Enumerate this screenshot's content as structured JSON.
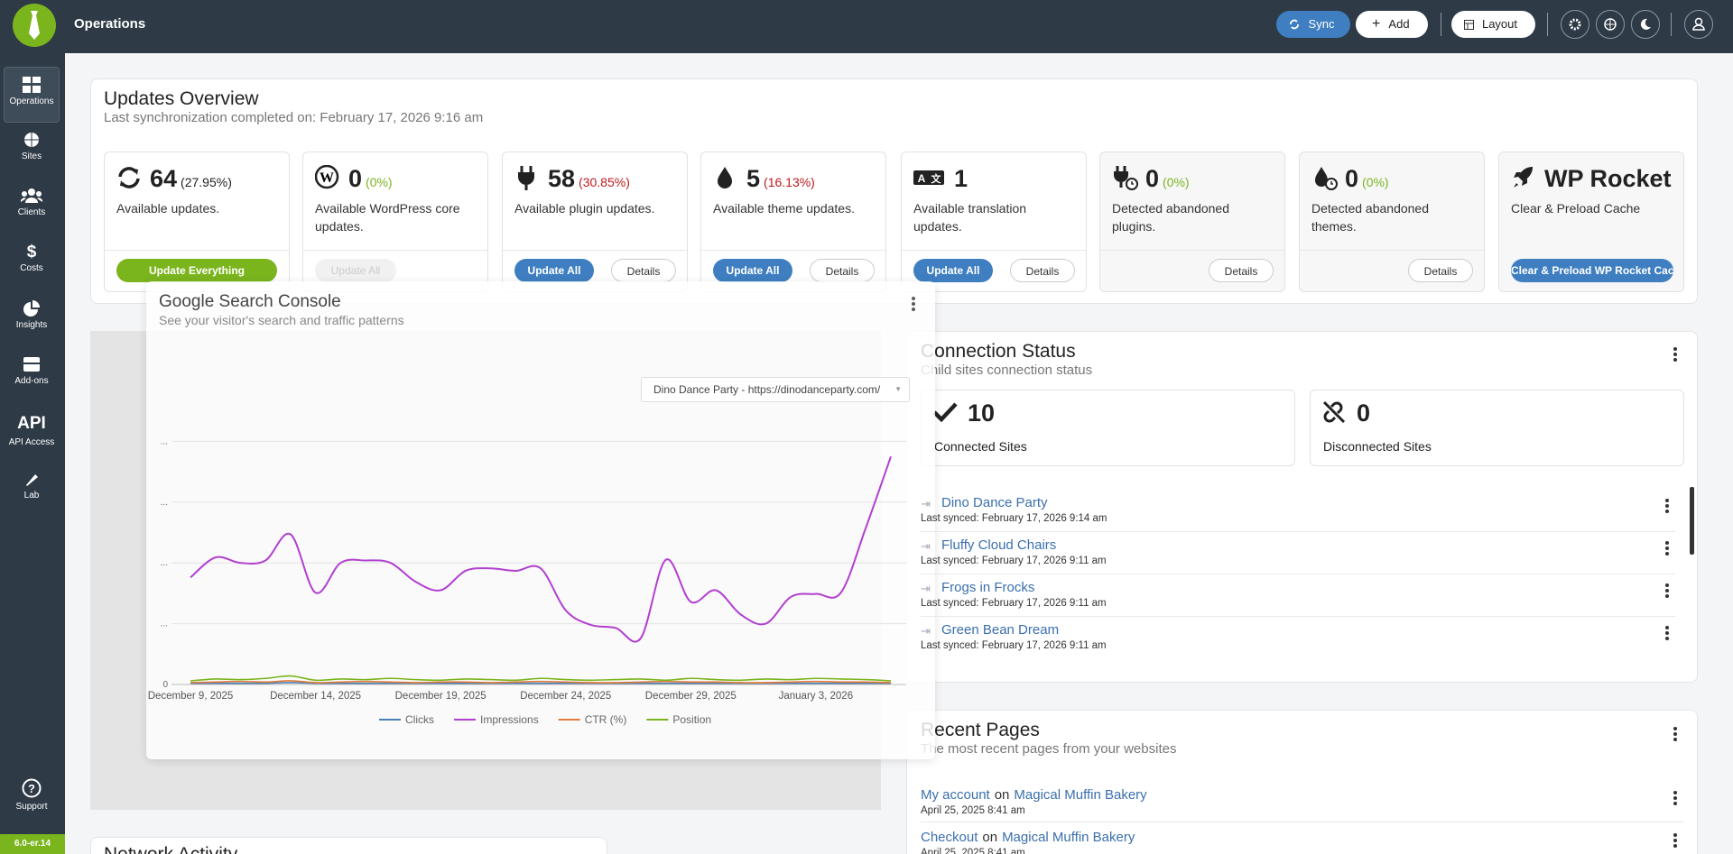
{
  "topbar": {
    "title": "Operations",
    "buttons": [
      "Sync",
      "Add",
      "Layout"
    ]
  },
  "sidebar": {
    "items": [
      "Operations",
      "Sites",
      "Clients",
      "Costs",
      "Insights",
      "Add-ons",
      "API Access",
      "Lab"
    ],
    "api_icon": "API",
    "support": "Support",
    "version": "6.0-er.14"
  },
  "updates": {
    "title": "Updates Overview",
    "subtitle": "Last synchronization completed on: February 17, 2026 9:16 am",
    "cards": [
      {
        "value": 64,
        "percent": "(27.95%)",
        "label": "Available updates.",
        "buttons": [
          "Update Everything"
        ]
      },
      {
        "value": 0,
        "percent": "(0%)",
        "label": "Available WordPress core updates.",
        "buttons": [
          "Update All"
        ]
      },
      {
        "value": 58,
        "percent": "(30.85%)",
        "label": "Available plugin updates.",
        "buttons": [
          "Update All",
          "Details"
        ]
      },
      {
        "value": 5,
        "percent": "(16.13%)",
        "label": "Available theme updates.",
        "buttons": [
          "Update All",
          "Details"
        ]
      },
      {
        "value": 1,
        "label": "Available translation updates.",
        "buttons": [
          "Update All",
          "Details"
        ]
      },
      {
        "value": 0,
        "percent": "(0%)",
        "label": "Detected abandoned plugins.",
        "buttons": [
          "Details"
        ]
      },
      {
        "value": 0,
        "percent": "(0%)",
        "label": "Detected abandoned themes.",
        "buttons": [
          "Details"
        ]
      },
      {
        "value": "WP Rocket",
        "label": "Clear & Preload Cache",
        "buttons": [
          "Clear & Preload WP Rocket Cache"
        ]
      }
    ]
  },
  "chart_data": {
    "type": "line",
    "title": "Google Search Console",
    "subtitle": "See your visitor's search and traffic patterns",
    "site_select": "Dino Dance Party - https://dinodanceparty.com/",
    "categories": [
      "December 9, 2025",
      null,
      null,
      null,
      null,
      "December 14, 2025",
      null,
      null,
      null,
      null,
      "December 19, 2025",
      null,
      null,
      null,
      null,
      "December 24, 2025",
      null,
      null,
      null,
      null,
      "December 29, 2025",
      null,
      null,
      null,
      null,
      "January 3, 2026",
      null,
      null,
      null
    ],
    "ylim": [
      0,
      4
    ],
    "yticks": [
      0,
      {
        "value": 1,
        "label": "..."
      },
      {
        "value": 2,
        "label": "..."
      },
      {
        "value": 3,
        "label": "..."
      },
      {
        "value": 4,
        "label": "..."
      }
    ],
    "grid": true,
    "series": [
      {
        "name": "Clicks",
        "color": "#4a7fb5",
        "values": [
          0.02,
          0.02,
          0.02,
          0.02,
          0.03,
          0.02,
          0.02,
          0.02,
          0.02,
          0.02,
          0.02,
          0.02,
          0.02,
          0.02,
          0.02,
          0.02,
          0.02,
          0.02,
          0.02,
          0.02,
          0.02,
          0.02,
          0.02,
          0.02,
          0.02,
          0.02,
          0.02,
          0.02,
          0.02
        ]
      },
      {
        "name": "Impressions",
        "color": "#b23fd0",
        "values": [
          1.76,
          2.09,
          2.0,
          2.04,
          2.47,
          1.51,
          2.0,
          2.04,
          2.0,
          1.69,
          1.55,
          1.87,
          1.91,
          1.87,
          1.91,
          1.22,
          0.98,
          0.93,
          0.76,
          2.05,
          1.36,
          1.55,
          1.15,
          1.0,
          1.44,
          1.49,
          1.51,
          2.58,
          3.75
        ]
      },
      {
        "name": "CTR (%)",
        "color": "#e07b39",
        "values": [
          0.03,
          0.04,
          0.05,
          0.04,
          0.06,
          0.03,
          0.04,
          0.05,
          0.04,
          0.03,
          0.04,
          0.04,
          0.03,
          0.04,
          0.05,
          0.04,
          0.03,
          0.03,
          0.04,
          0.05,
          0.04,
          0.04,
          0.03,
          0.03,
          0.04,
          0.05,
          0.04,
          0.04,
          0.03
        ]
      },
      {
        "name": "Position",
        "color": "#7ab51d",
        "values": [
          0.06,
          0.09,
          0.08,
          0.1,
          0.14,
          0.07,
          0.09,
          0.08,
          0.1,
          0.08,
          0.07,
          0.09,
          0.08,
          0.07,
          0.1,
          0.08,
          0.07,
          0.08,
          0.09,
          0.07,
          0.1,
          0.08,
          0.07,
          0.09,
          0.08,
          0.1,
          0.09,
          0.08,
          0.06
        ]
      }
    ]
  },
  "connection": {
    "title": "Connection Status",
    "subtitle": "Child sites connection status",
    "connected": {
      "value": 10,
      "label": "Connected Sites"
    },
    "disconnected": {
      "value": 0,
      "label": "Disconnected Sites"
    },
    "sites": [
      {
        "name": "Dino Dance Party",
        "synced": "Last synced: February 17, 2026 9:14 am"
      },
      {
        "name": "Fluffy Cloud Chairs",
        "synced": "Last synced: February 17, 2026 9:11 am"
      },
      {
        "name": "Frogs in Frocks",
        "synced": "Last synced: February 17, 2026 9:11 am"
      },
      {
        "name": "Green Bean Dream",
        "synced": "Last synced: February 17, 2026 9:11 am"
      }
    ]
  },
  "recent_pages": {
    "title": "Recent Pages",
    "subtitle": "The most recent pages from your websites",
    "items": [
      {
        "page": "My account",
        "on": "on",
        "site": "Magical Muffin Bakery",
        "date": "April 25, 2025 8:41 am"
      },
      {
        "page": "Checkout",
        "on": "on",
        "site": "Magical Muffin Bakery",
        "date": "April 25, 2025 8:41 am"
      }
    ]
  },
  "network": {
    "title": "Network Activity"
  }
}
